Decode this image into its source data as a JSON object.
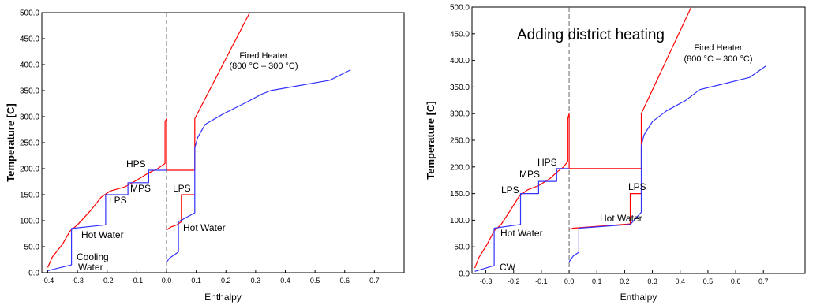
{
  "chart_data": [
    {
      "type": "line",
      "xlabel": "Enthalpy",
      "ylabel": "Temperature [C]",
      "xlim": [
        -0.42,
        0.8
      ],
      "ylim": [
        0,
        500
      ],
      "x_ticks": [
        -0.4,
        -0.3,
        -0.2,
        -0.1,
        0.0,
        0.1,
        0.2,
        0.3,
        0.4,
        0.5,
        0.6,
        0.7
      ],
      "x_tick_labels": [
        "-0.4",
        "-0.3",
        "-0.2",
        "-0.1",
        "0.0",
        "0.1",
        "0.2",
        "0.3",
        "0.4",
        "0.5",
        "0.6",
        "0.7"
      ],
      "y_ticks": [
        0,
        50,
        100,
        150,
        200,
        250,
        300,
        350,
        400,
        450,
        500
      ],
      "y_tick_labels": [
        "0.0",
        "50.0",
        "100.0",
        "150.0",
        "200.0",
        "250.0",
        "300.0",
        "350.0",
        "400.0",
        "450.0",
        "500.0"
      ],
      "grid": false,
      "series": [
        {
          "color": "#ff0000",
          "points": [
            [
              -0.4,
              10
            ],
            [
              -0.385,
              30
            ],
            [
              -0.35,
              55
            ],
            [
              -0.325,
              80
            ],
            [
              -0.3,
              92
            ],
            [
              -0.255,
              120
            ],
            [
              -0.22,
              145
            ],
            [
              -0.19,
              157
            ],
            [
              -0.14,
              165
            ],
            [
              -0.1,
              178
            ],
            [
              -0.06,
              192
            ],
            [
              -0.03,
              200
            ],
            [
              -0.005,
              210
            ],
            [
              -0.005,
              290
            ],
            [
              0.0,
              296
            ],
            [
              0.0,
              197
            ],
            [
              0.095,
              197
            ],
            [
              0.095,
              296
            ],
            [
              0.28,
              500
            ]
          ]
        },
        {
          "color": "#ff0000",
          "points": [
            [
              0.0,
              82
            ],
            [
              0.015,
              88
            ],
            [
              0.035,
              92
            ],
            [
              0.05,
              98
            ],
            [
              0.05,
              150
            ],
            [
              0.095,
              150
            ]
          ]
        },
        {
          "color": "#3333ff",
          "points": [
            [
              -0.4,
              4
            ],
            [
              -0.32,
              15
            ],
            [
              -0.32,
              85
            ],
            [
              -0.205,
              92
            ],
            [
              -0.205,
              150
            ],
            [
              -0.13,
              150
            ],
            [
              -0.13,
              173
            ],
            [
              -0.06,
              173
            ],
            [
              -0.06,
              197
            ],
            [
              0.0,
              197
            ]
          ]
        },
        {
          "color": "#3333ff",
          "points": [
            [
              0.0,
              20
            ],
            [
              0.01,
              28
            ],
            [
              0.04,
              40
            ],
            [
              0.04,
              98
            ],
            [
              0.095,
              115
            ],
            [
              0.095,
              240
            ],
            [
              0.105,
              260
            ],
            [
              0.13,
              285
            ],
            [
              0.19,
              305
            ],
            [
              0.26,
              325
            ],
            [
              0.32,
              343
            ],
            [
              0.35,
              350
            ],
            [
              0.45,
              360
            ],
            [
              0.55,
              370
            ],
            [
              0.62,
              390
            ]
          ]
        }
      ],
      "annotations": [
        "Fired Heater",
        "(800 °C – 300 °C)",
        "HPS",
        "MPS",
        "LPS",
        "LPS",
        "Hot Water",
        "Hot Water",
        "Cooling",
        "Water"
      ]
    },
    {
      "type": "line",
      "title": "Adding district heating",
      "xlabel": "Enthalpy",
      "ylabel": "Temperature [C]",
      "xlim": [
        -0.35,
        0.85
      ],
      "ylim": [
        0,
        500
      ],
      "x_ticks": [
        -0.3,
        -0.2,
        -0.1,
        0.0,
        0.1,
        0.2,
        0.3,
        0.4,
        0.5,
        0.6,
        0.7
      ],
      "x_tick_labels": [
        "-0.3",
        "-0.2",
        "-0.1",
        "0.0",
        "0.1",
        "0.2",
        "0.3",
        "0.4",
        "0.5",
        "0.6",
        "0.7"
      ],
      "y_ticks": [
        0,
        50,
        100,
        150,
        200,
        250,
        300,
        350,
        400,
        450,
        500
      ],
      "y_tick_labels": [
        "0.0",
        "50.0",
        "100.0",
        "150.0",
        "200.0",
        "250.0",
        "300.0",
        "350.0",
        "400.0",
        "450.0",
        "500.0"
      ],
      "grid": false,
      "series": [
        {
          "color": "#ff0000",
          "points": [
            [
              -0.34,
              10
            ],
            [
              -0.325,
              30
            ],
            [
              -0.295,
              55
            ],
            [
              -0.27,
              80
            ],
            [
              -0.245,
              92
            ],
            [
              -0.21,
              120
            ],
            [
              -0.18,
              145
            ],
            [
              -0.15,
              157
            ],
            [
              -0.11,
              165
            ],
            [
              -0.07,
              178
            ],
            [
              -0.04,
              192
            ],
            [
              -0.02,
              200
            ],
            [
              -0.005,
              210
            ],
            [
              -0.005,
              290
            ],
            [
              0.0,
              300
            ],
            [
              0.0,
              197
            ],
            [
              0.26,
              197
            ],
            [
              0.26,
              300
            ],
            [
              0.44,
              500
            ]
          ]
        },
        {
          "color": "#ff0000",
          "points": [
            [
              0.0,
              83
            ],
            [
              0.015,
              85
            ],
            [
              0.22,
              93
            ],
            [
              0.22,
              150
            ],
            [
              0.26,
              150
            ]
          ]
        },
        {
          "color": "#3333ff",
          "points": [
            [
              -0.34,
              4
            ],
            [
              -0.27,
              15
            ],
            [
              -0.27,
              85
            ],
            [
              -0.175,
              92
            ],
            [
              -0.175,
              150
            ],
            [
              -0.11,
              150
            ],
            [
              -0.11,
              173
            ],
            [
              -0.045,
              173
            ],
            [
              -0.045,
              197
            ],
            [
              0.0,
              197
            ]
          ]
        },
        {
          "color": "#3333ff",
          "points": [
            [
              0.0,
              22
            ],
            [
              0.015,
              33
            ],
            [
              0.035,
              40
            ],
            [
              0.035,
              85
            ],
            [
              0.22,
              92
            ],
            [
              0.26,
              115
            ],
            [
              0.26,
              240
            ],
            [
              0.27,
              260
            ],
            [
              0.3,
              285
            ],
            [
              0.35,
              305
            ],
            [
              0.42,
              325
            ],
            [
              0.47,
              345
            ],
            [
              0.55,
              355
            ],
            [
              0.65,
              368
            ],
            [
              0.71,
              390
            ]
          ]
        }
      ],
      "annotations": [
        "Fired Heater",
        "(800 °C – 300 °C)",
        "HPS",
        "MPS",
        "LPS",
        "LPS",
        "Hot Water",
        "Hot Water",
        "CW"
      ]
    }
  ]
}
